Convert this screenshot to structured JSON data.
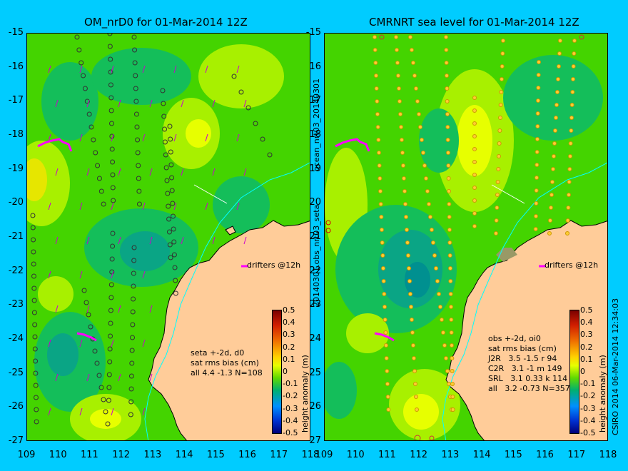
{
  "left_panel": {
    "title": "OM_nrD0 for 01-Mar-2014 12Z",
    "stats_text": "seta +-2d, d0\nsat rms bias (cm)\nall 4.4 -1.3 N=108",
    "drifters_label": "drifters @12h"
  },
  "right_panel": {
    "title": "CMRNRT sea level  for 01-Mar-2014 12Z",
    "stats_text": "obs +-2d, oi0\nsat rms bias (cm)\nJ2R   3.5 -1.5 r 94\nC2R   3.1 -1 m 149\nSRL   3.1 0.33 k 114\nall   3.2 -0.73 N=357",
    "drifters_label": "drifters @12h"
  },
  "side_labels": {
    "middle_top": "ocean_nrt03_20140301",
    "middle_bottom": "20140301.obs_nrt03_seta",
    "right_edge": "CSIRO 2014   06-Mar-2014 12:34:03"
  },
  "colorbar": {
    "label": "height anomaly (m)",
    "ticks": [
      "0.5",
      "0.4",
      "0.3",
      "0.2",
      "0.1",
      "0",
      "-0.1",
      "-0.2",
      "-0.3",
      "-0.4",
      "-0.5"
    ]
  },
  "axes": {
    "lat_ticks": [
      "-15",
      "-16",
      "-17",
      "-18",
      "-19",
      "-20",
      "-21",
      "-22",
      "-23",
      "-24",
      "-25",
      "-26",
      "-27"
    ],
    "lon_ticks": [
      "109",
      "110",
      "111",
      "112",
      "113",
      "114",
      "115",
      "116",
      "117",
      "118"
    ]
  },
  "colors": {
    "background": "#00ccff",
    "land": "#ffcc99",
    "sea_base": "#44d400",
    "drifter": "#ff00ff"
  }
}
